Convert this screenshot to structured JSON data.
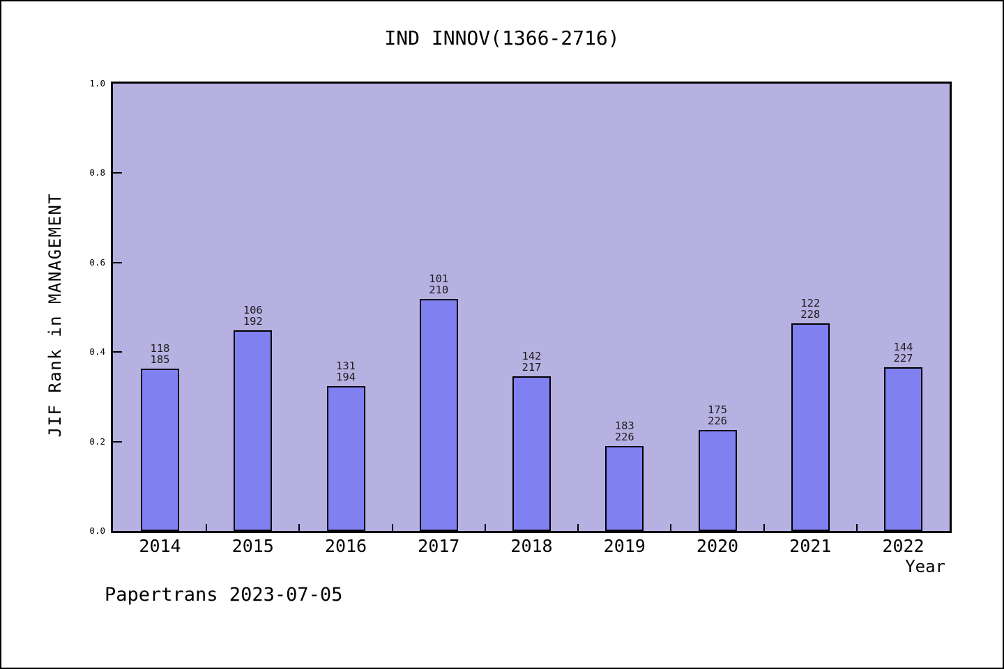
{
  "title": "IND INNOV(1366-2716)",
  "footer": "Papertrans 2023-07-05",
  "chart_data": {
    "type": "bar",
    "title": "IND INNOV(1366-2716)",
    "xlabel": "Year",
    "ylabel": "JIF Rank in MANAGEMENT",
    "ylim": [
      0.0,
      1.0
    ],
    "yticks": [
      "0.0",
      "0.2",
      "0.4",
      "0.6",
      "0.8",
      "1.0"
    ],
    "grid": "off",
    "legend": "none",
    "categories": [
      "2014",
      "2015",
      "2016",
      "2017",
      "2018",
      "2019",
      "2020",
      "2021",
      "2022"
    ],
    "bars": [
      {
        "year": "2014",
        "rank": 118,
        "total": 185,
        "value": 0.362
      },
      {
        "year": "2015",
        "rank": 106,
        "total": 192,
        "value": 0.448
      },
      {
        "year": "2016",
        "rank": 131,
        "total": 194,
        "value": 0.325
      },
      {
        "year": "2017",
        "rank": 101,
        "total": 210,
        "value": 0.519
      },
      {
        "year": "2018",
        "rank": 142,
        "total": 217,
        "value": 0.346
      },
      {
        "year": "2019",
        "rank": 183,
        "total": 226,
        "value": 0.19
      },
      {
        "year": "2020",
        "rank": 175,
        "total": 226,
        "value": 0.226
      },
      {
        "year": "2021",
        "rank": 122,
        "total": 228,
        "value": 0.465
      },
      {
        "year": "2022",
        "rank": 144,
        "total": 227,
        "value": 0.366
      }
    ],
    "bar_label_format": "rank over total",
    "colors": {
      "plot_bg": "#B7B1E2",
      "bar_fill": "#8180F1",
      "bar_border": "#000000",
      "text": "#000000"
    }
  }
}
